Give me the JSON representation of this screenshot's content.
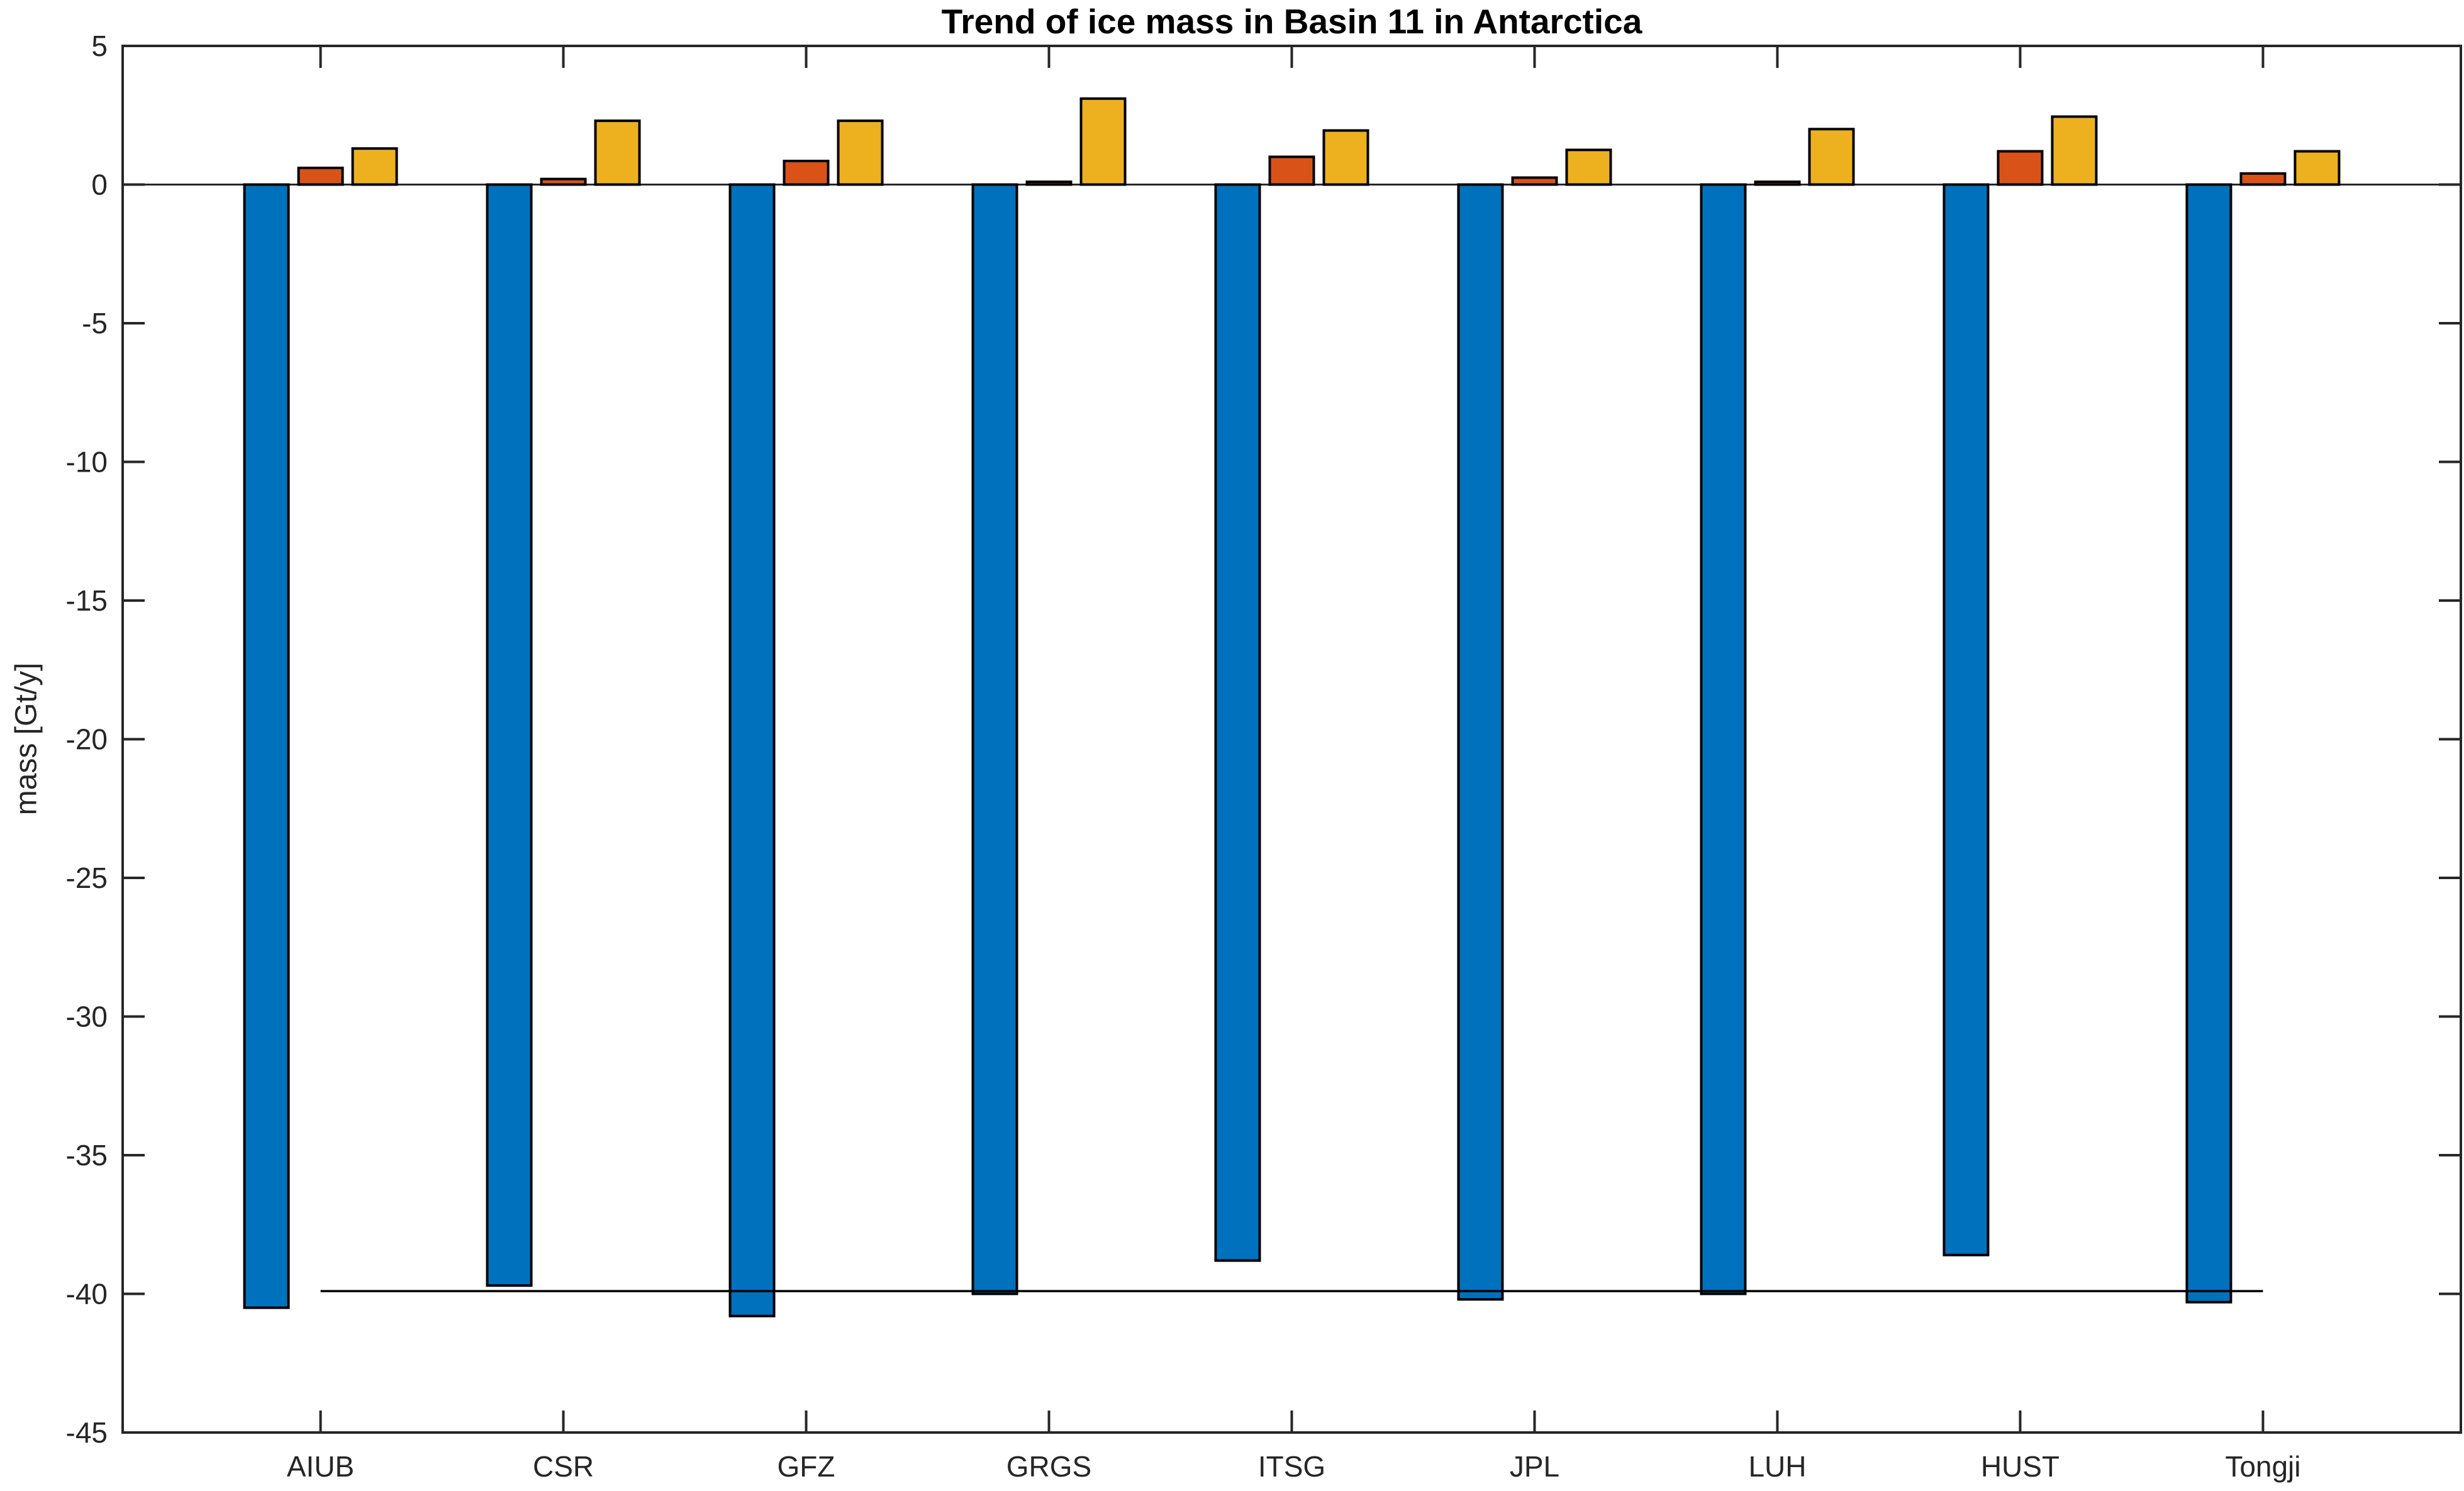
{
  "figure": {
    "background": "#ffffff"
  },
  "chart_data": {
    "type": "bar",
    "title": "Trend of ice mass in Basin 11 in Antarctica",
    "xlabel": "",
    "ylabel": "mass [Gt/y]",
    "categories": [
      "AIUB",
      "CSR",
      "GFZ",
      "GRGS",
      "ITSG",
      "JPL",
      "LUH",
      "HUST",
      "Tongji"
    ],
    "series": [
      {
        "name": "blue",
        "color": "#0072BD",
        "values": [
          -40.5,
          -39.7,
          -40.8,
          -40.0,
          -38.8,
          -40.2,
          -40.0,
          -38.6,
          -40.3
        ]
      },
      {
        "name": "orange",
        "color": "#D95319",
        "values": [
          0.6,
          0.2,
          0.85,
          0.1,
          1.0,
          0.25,
          0.1,
          1.2,
          0.4
        ]
      },
      {
        "name": "yellow",
        "color": "#EDB120",
        "values": [
          1.3,
          2.3,
          2.3,
          3.1,
          1.95,
          1.25,
          2.0,
          2.45,
          1.2
        ]
      }
    ],
    "hline": {
      "y": -39.9,
      "x_from_category": "AIUB",
      "x_to_category": "Tongji",
      "color": "#000000"
    },
    "ylim": [
      -45,
      5
    ],
    "yticks": [
      5,
      0,
      -5,
      -10,
      -15,
      -20,
      -25,
      -30,
      -35,
      -40,
      -45
    ],
    "grid": false,
    "legend": null,
    "bar_edge_color": "#000000",
    "axis_color": "#262626",
    "zero_baseline": true
  }
}
